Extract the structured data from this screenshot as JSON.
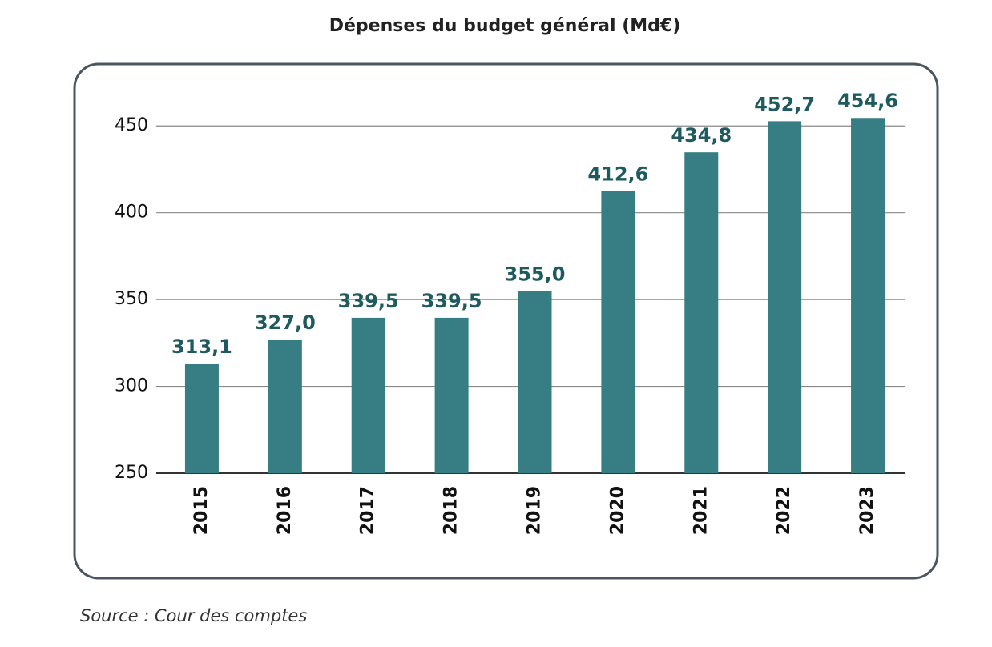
{
  "chart_data": {
    "type": "bar",
    "title": "Dépenses du budget général (Md€)",
    "categories": [
      "2015",
      "2016",
      "2017",
      "2018",
      "2019",
      "2020",
      "2021",
      "2022",
      "2023"
    ],
    "values": [
      313.1,
      327.0,
      339.5,
      339.5,
      355.0,
      412.6,
      434.8,
      452.7,
      454.6
    ],
    "value_labels": [
      "313,1",
      "327,0",
      "339,5",
      "339,5",
      "355,0",
      "412,6",
      "434,8",
      "452,7",
      "454,6"
    ],
    "color": "#367e83",
    "ylim": [
      250,
      475
    ],
    "yticks": [
      250,
      300,
      350,
      400,
      450
    ],
    "grid": true,
    "source": "Source : Cour des comptes"
  }
}
